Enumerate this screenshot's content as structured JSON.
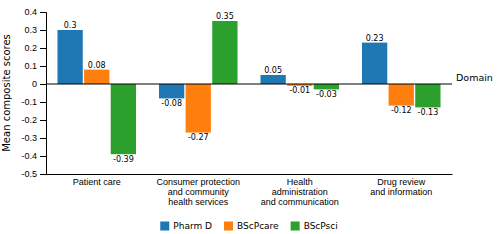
{
  "chart_data": {
    "type": "bar",
    "categories": [
      "Patient care",
      "Consumer protection\nand community\nhealth services",
      "Health\nadministration\nand communication",
      "Drug review\nand information"
    ],
    "series": [
      {
        "name": "Pharm D",
        "values": [
          0.3,
          -0.08,
          0.05,
          0.23
        ]
      },
      {
        "name": "BScPcare",
        "values": [
          0.08,
          -0.27,
          -0.01,
          -0.12
        ]
      },
      {
        "name": "BScPsci",
        "values": [
          -0.39,
          0.35,
          -0.03,
          -0.13
        ]
      }
    ],
    "ylabel": "Mean composite scores",
    "ylim": [
      -0.5,
      0.4
    ],
    "yticks": [
      -0.5,
      -0.4,
      -0.3,
      -0.2,
      -0.1,
      0,
      0.1,
      0.2,
      0.3,
      0.4
    ],
    "annotations": [
      "Domain"
    ],
    "data_labels": true,
    "legend": "bottom",
    "grid": false
  }
}
